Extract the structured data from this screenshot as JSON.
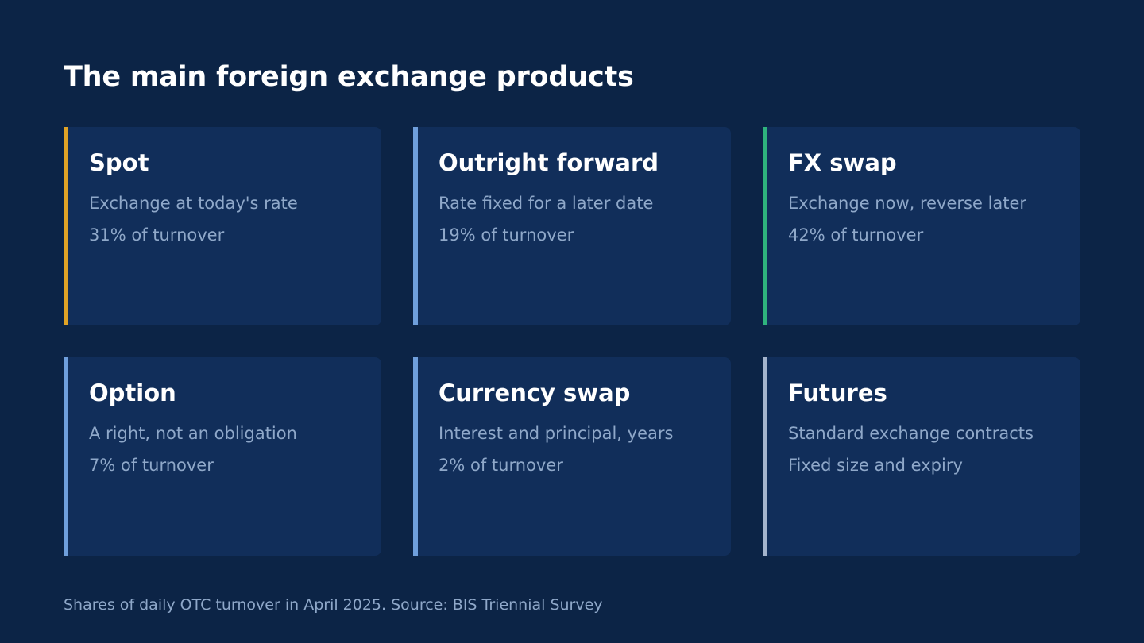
{
  "title": "The main foreign exchange products",
  "cards": [
    {
      "title": "Spot",
      "lines": [
        "Exchange at today's rate",
        "31% of turnover"
      ],
      "accent_color": "#e0a326"
    },
    {
      "title": "Outright forward",
      "lines": [
        "Rate fixed for a later date",
        "19% of turnover"
      ],
      "accent_color": "#6f9fdc"
    },
    {
      "title": "FX swap",
      "lines": [
        "Exchange now, reverse later",
        "42% of turnover"
      ],
      "accent_color": "#2fb37d"
    },
    {
      "title": "Option",
      "lines": [
        "A right, not an obligation",
        "7% of turnover"
      ],
      "accent_color": "#6f9fdc"
    },
    {
      "title": "Currency swap",
      "lines": [
        "Interest and principal, years",
        "2% of turnover"
      ],
      "accent_color": "#6f9fdc"
    },
    {
      "title": "Futures",
      "lines": [
        "Standard exchange contracts",
        "Fixed size and expiry"
      ],
      "accent_color": "#a4b4cc"
    }
  ],
  "footnote": "Shares of daily OTC turnover in April 2025. Source: BIS Triennial Survey",
  "colors": {
    "background": "#0c2446",
    "card_background": "#112e5a",
    "title_text": "#ffffff",
    "secondary_text": "#8fa8c9"
  }
}
